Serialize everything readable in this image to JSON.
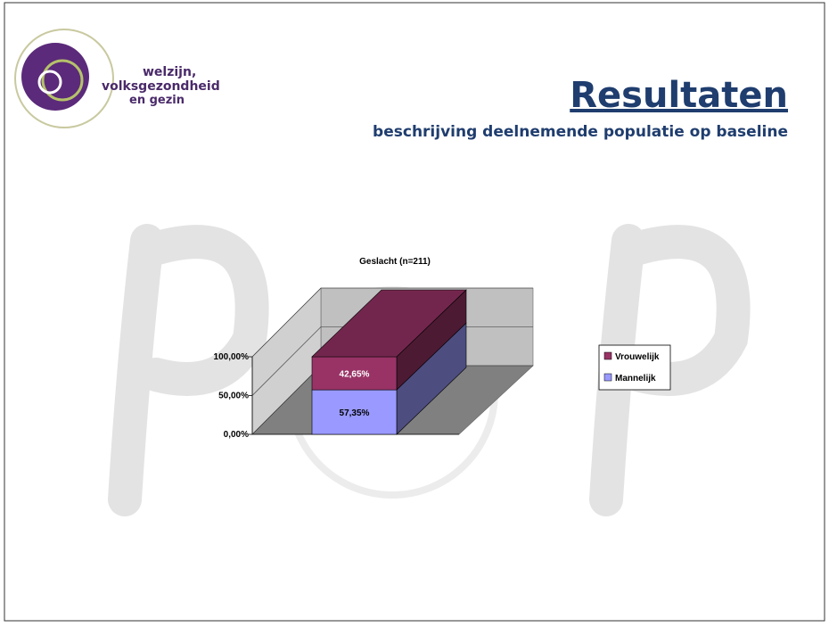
{
  "header": {
    "logo_text": [
      "welzijn,",
      "volksgezondheid",
      "en gezin"
    ],
    "title": "Resultaten",
    "subtitle": "beschrijving deelnemende populatie op baseline"
  },
  "chart_data": {
    "type": "bar3d_stacked",
    "title": "Geslacht (n=211)",
    "categories": [
      null
    ],
    "series": [
      {
        "name": "Mannelijk",
        "color": "#9999ff",
        "values": [
          57.35
        ],
        "value_labels": [
          "57,35%"
        ]
      },
      {
        "name": "Vrouwelijk",
        "color": "#993366",
        "values": [
          42.65
        ],
        "value_labels": [
          "42,65%"
        ]
      }
    ],
    "ylim": [
      0,
      100
    ],
    "yticks": [
      {
        "value": 0,
        "label": "0,00%"
      },
      {
        "value": 50,
        "label": "50,00%"
      },
      {
        "value": 100,
        "label": "100,00%"
      }
    ],
    "grid": true,
    "legend": "right"
  }
}
